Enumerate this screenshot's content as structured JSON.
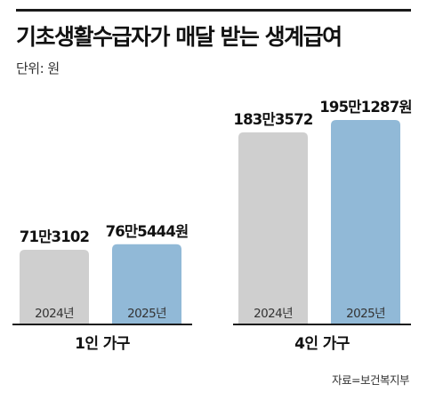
{
  "header": {
    "title": "기초생활수급자가 매달 받는 생계급여",
    "unit": "단위: 원"
  },
  "source": "자료=보건복지부",
  "colors": {
    "y2024": "#cfcfcf",
    "y2025": "#91b9d7",
    "baseline": "#1a1a1a",
    "title_rule": "#1a1a1a"
  },
  "chart_data": {
    "type": "bar",
    "categories": [
      "1인 가구",
      "4인 가구"
    ],
    "series": [
      {
        "name": "2024년",
        "values": [
          713102,
          1833572
        ],
        "labels": [
          "71만3102",
          "183만3572"
        ]
      },
      {
        "name": "2025년",
        "values": [
          765444,
          1951287
        ],
        "labels": [
          "76만5444원",
          "195만1287원"
        ]
      }
    ],
    "ylabel": "단위: 원",
    "ylim": [
      0,
      1951287
    ],
    "grid": false,
    "legend": "none"
  }
}
